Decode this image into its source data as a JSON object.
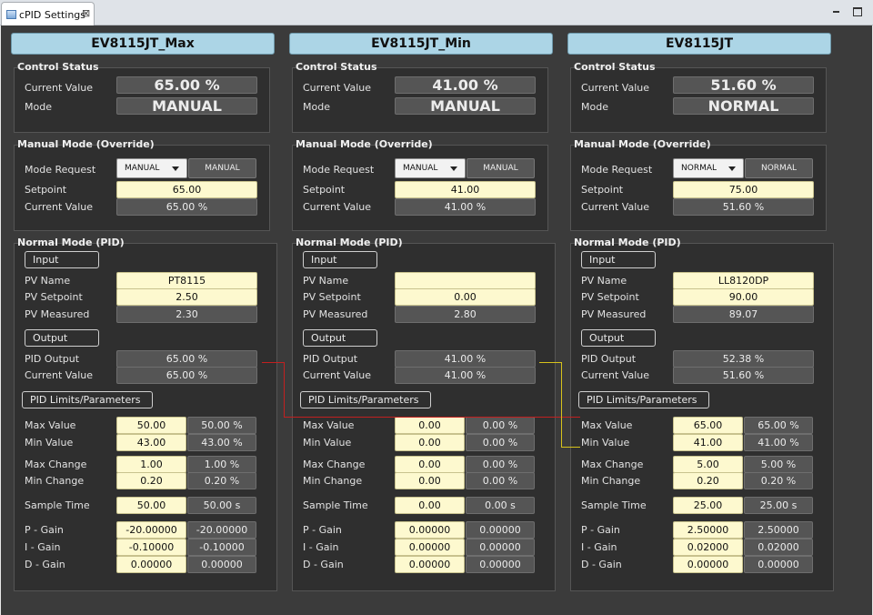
{
  "tab": {
    "title": "cPID Settings",
    "close": "⊠"
  },
  "labels": {
    "control_status": "Control Status",
    "manual_mode": "Manual Mode (Override)",
    "normal_mode": "Normal Mode (PID)",
    "current_value": "Current Value",
    "mode": "Mode",
    "mode_request": "Mode Request",
    "setpoint": "Setpoint",
    "input": "Input",
    "pv_name": "PV Name",
    "pv_setpoint": "PV Setpoint",
    "pv_measured": "PV Measured",
    "output": "Output",
    "pid_output": "PID Output",
    "limits": "PID Limits/Parameters",
    "max_value": "Max Value",
    "min_value": "Min Value",
    "max_change": "Max Change",
    "min_change": "Min Change",
    "sample_time": "Sample Time",
    "p_gain": "P - Gain",
    "i_gain": "I  - Gain",
    "d_gain": "D - Gain"
  },
  "wire_colors": {
    "red": "#c22020",
    "yellow": "#d7c21b"
  },
  "columns": [
    {
      "name": "EV8115JT_Max",
      "status_value": "65.00 %",
      "status_mode": "MANUAL",
      "mode_request": "MANUAL",
      "mode_button": "MANUAL",
      "setpoint": "65.00",
      "manual_current": "65.00 %",
      "pv_name": "PT8115",
      "pv_setpoint": "2.50",
      "pv_measured": "2.30",
      "pid_output": "65.00 %",
      "out_current": "65.00 %",
      "max_value": "50.00",
      "max_value_ro": "50.00 %",
      "min_value": "43.00",
      "min_value_ro": "43.00 %",
      "max_change": "1.00",
      "max_change_ro": "1.00 %",
      "min_change": "0.20",
      "min_change_ro": "0.20 %",
      "sample_time": "50.00",
      "sample_time_ro": "50.00 s",
      "p_gain": "-20.00000",
      "p_gain_ro": "-20.00000",
      "i_gain": "-0.10000",
      "i_gain_ro": "-0.10000",
      "d_gain": "0.00000",
      "d_gain_ro": "0.00000"
    },
    {
      "name": "EV8115JT_Min",
      "status_value": "41.00 %",
      "status_mode": "MANUAL",
      "mode_request": "MANUAL",
      "mode_button": "MANUAL",
      "setpoint": "41.00",
      "manual_current": "41.00 %",
      "pv_name": "",
      "pv_setpoint": "0.00",
      "pv_measured": "2.80",
      "pid_output": "41.00 %",
      "out_current": "41.00 %",
      "max_value": "0.00",
      "max_value_ro": "0.00 %",
      "min_value": "0.00",
      "min_value_ro": "0.00 %",
      "max_change": "0.00",
      "max_change_ro": "0.00 %",
      "min_change": "0.00",
      "min_change_ro": "0.00 %",
      "sample_time": "0.00",
      "sample_time_ro": "0.00 s",
      "p_gain": "0.00000",
      "p_gain_ro": "0.00000",
      "i_gain": "0.00000",
      "i_gain_ro": "0.00000",
      "d_gain": "0.00000",
      "d_gain_ro": "0.00000"
    },
    {
      "name": "EV8115JT",
      "status_value": "51.60 %",
      "status_mode": "NORMAL",
      "mode_request": "NORMAL",
      "mode_button": "NORMAL",
      "setpoint": "75.00",
      "manual_current": "51.60 %",
      "pv_name": "LL8120DP",
      "pv_setpoint": "90.00",
      "pv_measured": "89.07",
      "pid_output": "52.38 %",
      "out_current": "51.60 %",
      "max_value": "65.00",
      "max_value_ro": "65.00 %",
      "min_value": "41.00",
      "min_value_ro": "41.00 %",
      "max_change": "5.00",
      "max_change_ro": "5.00 %",
      "min_change": "0.20",
      "min_change_ro": "0.20 %",
      "sample_time": "25.00",
      "sample_time_ro": "25.00 s",
      "p_gain": "2.50000",
      "p_gain_ro": "2.50000",
      "i_gain": "0.02000",
      "i_gain_ro": "0.02000",
      "d_gain": "0.00000",
      "d_gain_ro": "0.00000"
    }
  ]
}
